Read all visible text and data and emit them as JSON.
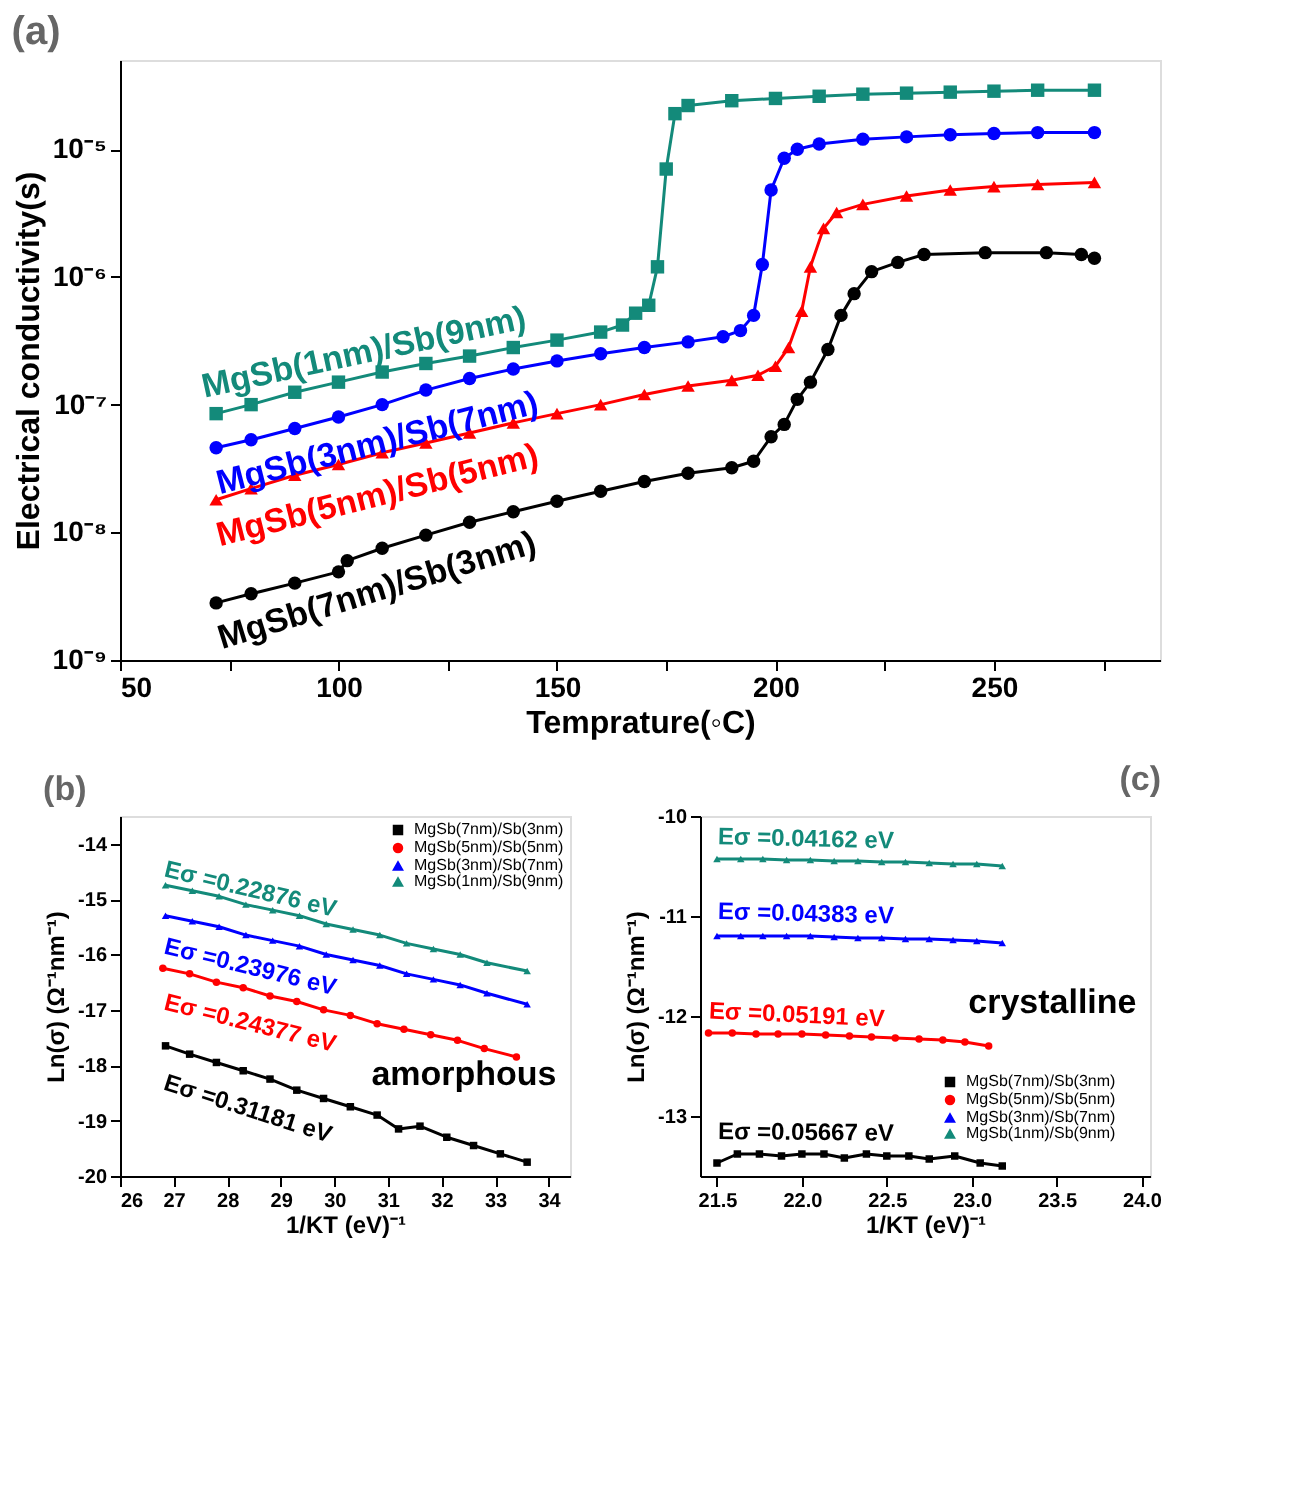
{
  "chart_data": [
    {
      "type": "line",
      "title": "(a)",
      "xlabel": "Temprature(◦C)",
      "ylabel": "Electrical conductivity(s)",
      "log": true,
      "legend": false,
      "xlim": [
        50,
        288
      ],
      "xticks": [
        50,
        {
          "value": 75,
          "label": null
        },
        100,
        {
          "value": 125,
          "label": null
        },
        150,
        {
          "value": 175,
          "label": null
        },
        200,
        {
          "value": 225,
          "label": null
        },
        250,
        {
          "value": 275,
          "label": null
        }
      ],
      "ylim": [
        1e-09,
        5e-05
      ],
      "yticks": [
        {
          "value": 1e-09,
          "label": "10⁻⁹"
        },
        {
          "value": 1e-08,
          "label": "10⁻⁸"
        },
        {
          "value": 1e-07,
          "label": "10⁻⁷"
        },
        {
          "value": 1e-06,
          "label": "10⁻⁶"
        },
        {
          "value": 1e-05,
          "label": "10⁻⁵"
        }
      ],
      "series": [
        {
          "name": "MgSb(7nm)/Sb(3nm)",
          "color": "#000000",
          "marker": "circle",
          "x": [
            72,
            80,
            90,
            100,
            102,
            110,
            120,
            130,
            140,
            150,
            160,
            170,
            180,
            190,
            195,
            199,
            202,
            205,
            208,
            212,
            215,
            218,
            222,
            228,
            234,
            248,
            262,
            270,
            273
          ],
          "values": [
            2.8e-09,
            3.3e-09,
            4e-09,
            4.9e-09,
            6e-09,
            7.5e-09,
            9.5e-09,
            1.2e-08,
            1.45e-08,
            1.75e-08,
            2.1e-08,
            2.5e-08,
            2.9e-08,
            3.2e-08,
            3.6e-08,
            5.6e-08,
            7e-08,
            1.1e-07,
            1.5e-07,
            2.7e-07,
            5e-07,
            7.4e-07,
            1.1e-06,
            1.3e-06,
            1.5e-06,
            1.55e-06,
            1.55e-06,
            1.5e-06,
            1.4e-06
          ]
        },
        {
          "name": "MgSb(5nm)/Sb(5nm)",
          "color": "#ff0000",
          "marker": "triangle",
          "x": [
            72,
            80,
            90,
            100,
            110,
            120,
            130,
            140,
            150,
            160,
            170,
            180,
            190,
            196,
            200,
            203,
            206,
            208,
            211,
            214,
            220,
            230,
            240,
            250,
            260,
            273
          ],
          "values": [
            1.8e-08,
            2.2e-08,
            2.8e-08,
            3.4e-08,
            4.2e-08,
            5e-08,
            6e-08,
            7.2e-08,
            8.5e-08,
            1e-07,
            1.2e-07,
            1.4e-07,
            1.55e-07,
            1.7e-07,
            2e-07,
            2.8e-07,
            5.4e-07,
            1.2e-06,
            2.4e-06,
            3.2e-06,
            3.7e-06,
            4.3e-06,
            4.8e-06,
            5.1e-06,
            5.3e-06,
            5.5e-06
          ]
        },
        {
          "name": "MgSb(3nm)/Sb(7nm)",
          "color": "#0000ff",
          "marker": "circle",
          "x": [
            72,
            80,
            90,
            100,
            110,
            120,
            130,
            140,
            150,
            160,
            170,
            180,
            188,
            192,
            195,
            197,
            199,
            202,
            205,
            210,
            220,
            230,
            240,
            250,
            260,
            273
          ],
          "values": [
            4.6e-08,
            5.3e-08,
            6.5e-08,
            8e-08,
            1e-07,
            1.3e-07,
            1.6e-07,
            1.9e-07,
            2.2e-07,
            2.5e-07,
            2.8e-07,
            3.1e-07,
            3.4e-07,
            3.8e-07,
            5e-07,
            1.25e-06,
            4.8e-06,
            8.5e-06,
            1e-05,
            1.1e-05,
            1.2e-05,
            1.25e-05,
            1.3e-05,
            1.33e-05,
            1.35e-05,
            1.35e-05
          ]
        },
        {
          "name": "MgSb(1nm)/Sb(9nm)",
          "color": "#138a7a",
          "marker": "square",
          "x": [
            72,
            80,
            90,
            100,
            110,
            120,
            130,
            140,
            150,
            160,
            165,
            168,
            171,
            173,
            175,
            177,
            180,
            190,
            200,
            210,
            220,
            230,
            240,
            250,
            260,
            273
          ],
          "values": [
            8.5e-08,
            1e-07,
            1.25e-07,
            1.5e-07,
            1.8e-07,
            2.1e-07,
            2.4e-07,
            2.8e-07,
            3.2e-07,
            3.7e-07,
            4.2e-07,
            5.2e-07,
            6e-07,
            1.2e-06,
            7e-06,
            1.9e-05,
            2.2e-05,
            2.4e-05,
            2.5e-05,
            2.6e-05,
            2.7e-05,
            2.75e-05,
            2.8e-05,
            2.85e-05,
            2.9e-05,
            2.9e-05
          ]
        }
      ]
    },
    {
      "type": "line",
      "title": "(b)",
      "xlabel": "1/KT (eV)⁻¹",
      "ylabel": "Ln(σ) (Ω⁻¹nm⁻¹)",
      "legend": "top right",
      "xlim": [
        26,
        34.4
      ],
      "xticks": [
        26,
        27,
        28,
        29,
        30,
        31,
        32,
        33,
        34
      ],
      "ylim": [
        -20,
        -13.5
      ],
      "yticks": [
        -20,
        -19,
        -18,
        -17,
        -16,
        -15,
        -14
      ],
      "annotations": [
        "Eσ =0.22876 eV",
        "Eσ =0.23976 eV",
        "Eσ =0.24377 eV",
        "Eσ =0.31181 eV",
        "amorphous"
      ],
      "series": [
        {
          "name": "MgSb(7nm)/Sb(3nm)",
          "color": "#000000",
          "marker": "square",
          "x": [
            26.85,
            27.3,
            27.8,
            28.3,
            28.8,
            29.3,
            29.8,
            30.3,
            30.8,
            31.2,
            31.6,
            32.1,
            32.6,
            33.1,
            33.6
          ],
          "values": [
            -17.65,
            -17.8,
            -17.95,
            -18.1,
            -18.25,
            -18.45,
            -18.6,
            -18.75,
            -18.9,
            -19.15,
            -19.1,
            -19.3,
            -19.45,
            -19.6,
            -19.75
          ]
        },
        {
          "name": "MgSb(5nm)/Sb(5nm)",
          "color": "#ff0000",
          "marker": "circle",
          "x": [
            26.8,
            27.3,
            27.8,
            28.3,
            28.8,
            29.3,
            29.8,
            30.3,
            30.8,
            31.3,
            31.8,
            32.3,
            32.8,
            33.4
          ],
          "values": [
            -16.25,
            -16.35,
            -16.5,
            -16.6,
            -16.75,
            -16.85,
            -17.0,
            -17.1,
            -17.25,
            -17.35,
            -17.45,
            -17.55,
            -17.7,
            -17.85
          ]
        },
        {
          "name": "MgSb(3nm)/Sb(7nm)",
          "color": "#0000ff",
          "marker": "triangle",
          "x": [
            26.85,
            27.35,
            27.85,
            28.35,
            28.85,
            29.35,
            29.85,
            30.35,
            30.85,
            31.35,
            31.85,
            32.35,
            32.85,
            33.6
          ],
          "values": [
            -15.3,
            -15.4,
            -15.5,
            -15.65,
            -15.75,
            -15.85,
            -16.0,
            -16.1,
            -16.2,
            -16.35,
            -16.45,
            -16.55,
            -16.7,
            -16.9
          ]
        },
        {
          "name": "MgSb(1nm)/Sb(9nm)",
          "color": "#138a7a",
          "marker": "triangle",
          "x": [
            26.85,
            27.35,
            27.85,
            28.35,
            28.85,
            29.35,
            29.85,
            30.35,
            30.85,
            31.35,
            31.85,
            32.35,
            32.85,
            33.6
          ],
          "values": [
            -14.75,
            -14.85,
            -14.95,
            -15.1,
            -15.2,
            -15.3,
            -15.45,
            -15.55,
            -15.65,
            -15.8,
            -15.9,
            -16.0,
            -16.15,
            -16.3
          ]
        }
      ]
    },
    {
      "type": "line",
      "title": "(c)",
      "xlabel": "1/KT (eV)⁻¹",
      "ylabel": "Ln(σ) (Ω⁻¹nm⁻¹)",
      "legend": "bottom right",
      "xlim": [
        21.4,
        24.05
      ],
      "xticks": [
        21.5,
        {
          "value": 22,
          "label": "22.0"
        },
        22.5,
        {
          "value": 23,
          "label": "23.0"
        },
        23.5,
        {
          "value": 24,
          "label": "24.0"
        }
      ],
      "ylim": [
        -13.6,
        -10
      ],
      "yticks": [
        -13,
        -12,
        -11,
        -10
      ],
      "annotations": [
        "Eσ =0.04162 eV",
        "Eσ =0.04383 eV",
        "Eσ =0.05191 eV",
        "Eσ =0.05667 eV",
        "crystalline"
      ],
      "series": [
        {
          "name": "MgSb(7nm)/Sb(3nm)",
          "color": "#000000",
          "marker": "square",
          "x": [
            21.5,
            21.62,
            21.75,
            21.88,
            22.0,
            22.13,
            22.25,
            22.38,
            22.5,
            22.63,
            22.75,
            22.9,
            23.05,
            23.18
          ],
          "values": [
            -13.47,
            -13.38,
            -13.38,
            -13.4,
            -13.38,
            -13.38,
            -13.42,
            -13.38,
            -13.4,
            -13.4,
            -13.43,
            -13.4,
            -13.47,
            -13.5
          ]
        },
        {
          "name": "MgSb(5nm)/Sb(5nm)",
          "color": "#ff0000",
          "marker": "circle",
          "x": [
            21.45,
            21.59,
            21.73,
            21.86,
            22.0,
            22.14,
            22.28,
            22.41,
            22.55,
            22.69,
            22.83,
            22.96,
            23.1
          ],
          "values": [
            -12.17,
            -12.17,
            -12.18,
            -12.18,
            -12.18,
            -12.19,
            -12.2,
            -12.21,
            -12.22,
            -12.23,
            -12.24,
            -12.26,
            -12.3
          ]
        },
        {
          "name": "MgSb(3nm)/Sb(7nm)",
          "color": "#0000ff",
          "marker": "triangle",
          "x": [
            21.5,
            21.64,
            21.77,
            21.91,
            22.05,
            22.19,
            22.33,
            22.47,
            22.61,
            22.75,
            22.89,
            23.03,
            23.18
          ],
          "values": [
            -11.2,
            -11.2,
            -11.2,
            -11.2,
            -11.2,
            -11.21,
            -11.22,
            -11.22,
            -11.23,
            -11.23,
            -11.24,
            -11.25,
            -11.27
          ]
        },
        {
          "name": "MgSb(1nm)/Sb(9nm)",
          "color": "#138a7a",
          "marker": "triangle",
          "x": [
            21.5,
            21.64,
            21.77,
            21.91,
            22.05,
            22.19,
            22.33,
            22.47,
            22.61,
            22.75,
            22.89,
            23.03,
            23.18
          ],
          "values": [
            -10.43,
            -10.43,
            -10.43,
            -10.44,
            -10.44,
            -10.45,
            -10.45,
            -10.46,
            -10.46,
            -10.47,
            -10.48,
            -10.48,
            -10.5
          ]
        }
      ]
    }
  ]
}
